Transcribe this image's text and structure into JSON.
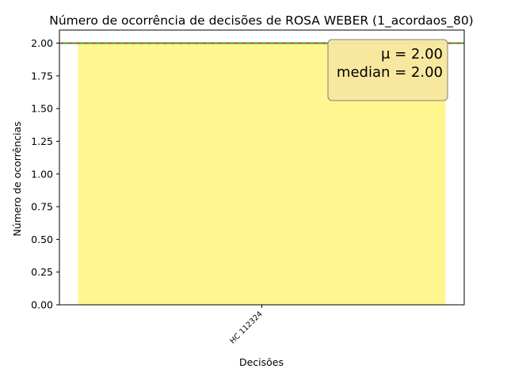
{
  "chart_data": {
    "type": "bar",
    "title": "Número de ocorrência de decisões de ROSA WEBER (1_acordaos_80)",
    "xlabel": "Decisões",
    "ylabel": "Número de ocorrências",
    "categories": [
      "HC 112324"
    ],
    "values": [
      2
    ],
    "ylim": [
      0,
      2.1
    ],
    "yticks": [
      "0.00",
      "0.25",
      "0.50",
      "0.75",
      "1.00",
      "1.25",
      "1.50",
      "1.75",
      "2.00"
    ],
    "bar_color": "#fff68f",
    "mean": 2.0,
    "median": 2.0,
    "mean_line_color": "#d62728",
    "median_line_color": "#2ca02c",
    "stats_box": {
      "mean_label": "μ = 2.00",
      "median_label": "median = 2.00",
      "placement": "top-right",
      "background": "#f8e7a0"
    },
    "grid": false
  }
}
